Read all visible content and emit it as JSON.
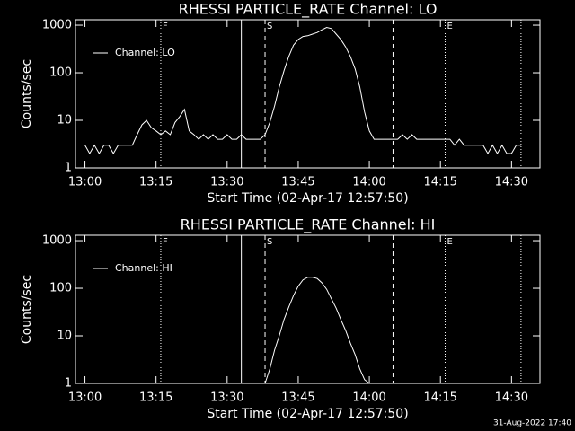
{
  "chart_data": [
    {
      "type": "line",
      "title": "RHESSI PARTICLE_RATE Channel: LO",
      "xlabel": "Start Time (02-Apr-17 12:57:50)",
      "ylabel": "Counts/sec",
      "log_y": true,
      "xlim": [
        "12:58",
        "14:36"
      ],
      "ylim": [
        1,
        1300
      ],
      "yticks": [
        1,
        10,
        100,
        1000
      ],
      "xticks": [
        "13:00",
        "13:15",
        "13:30",
        "13:45",
        "14:00",
        "14:15",
        "14:30"
      ],
      "markers": [
        {
          "x": "13:16",
          "style": "dotted",
          "label": "F"
        },
        {
          "x": "13:33",
          "style": "solid"
        },
        {
          "x": "13:38",
          "style": "dashed",
          "label": "S"
        },
        {
          "x": "14:05",
          "style": "dashed"
        },
        {
          "x": "14:16",
          "style": "dotted",
          "label": "E"
        },
        {
          "x": "14:32",
          "style": "dotted"
        }
      ],
      "legend": "upper left",
      "x": [
        "13:00",
        "13:01",
        "13:02",
        "13:03",
        "13:04",
        "13:05",
        "13:06",
        "13:07",
        "13:08",
        "13:09",
        "13:10",
        "13:11",
        "13:12",
        "13:13",
        "13:14",
        "13:15",
        "13:16",
        "13:17",
        "13:18",
        "13:19",
        "13:20",
        "13:21",
        "13:22",
        "13:23",
        "13:24",
        "13:25",
        "13:26",
        "13:27",
        "13:28",
        "13:29",
        "13:30",
        "13:31",
        "13:32",
        "13:33",
        "13:34",
        "13:35",
        "13:36",
        "13:37",
        "13:38",
        "13:39",
        "13:40",
        "13:41",
        "13:42",
        "13:43",
        "13:44",
        "13:45",
        "13:46",
        "13:47",
        "13:48",
        "13:49",
        "13:50",
        "13:51",
        "13:52",
        "13:53",
        "13:54",
        "13:55",
        "13:56",
        "13:57",
        "13:58",
        "13:59",
        "14:00",
        "14:01",
        "14:02",
        "14:03",
        "14:04",
        "14:05",
        "14:06",
        "14:07",
        "14:08",
        "14:09",
        "14:10",
        "14:11",
        "14:12",
        "14:13",
        "14:14",
        "14:15",
        "14:16",
        "14:17",
        "14:18",
        "14:19",
        "14:20",
        "14:21",
        "14:22",
        "14:23",
        "14:24",
        "14:25",
        "14:26",
        "14:27",
        "14:28",
        "14:29",
        "14:30",
        "14:31",
        "14:32"
      ],
      "series": [
        {
          "name": "Channel: LO",
          "color": "#ffffff",
          "values": [
            3,
            2,
            3,
            2,
            3,
            3,
            2,
            3,
            3,
            3,
            3,
            5,
            8,
            10,
            7,
            6,
            5,
            6,
            5,
            9,
            12,
            17,
            6,
            5,
            4,
            5,
            4,
            5,
            4,
            4,
            5,
            4,
            4,
            5,
            4,
            4,
            4,
            4,
            5,
            9,
            20,
            50,
            110,
            220,
            380,
            500,
            580,
            600,
            650,
            700,
            800,
            900,
            850,
            650,
            500,
            350,
            220,
            120,
            50,
            15,
            6,
            4,
            4,
            4,
            4,
            4,
            4,
            5,
            4,
            5,
            4,
            4,
            4,
            4,
            4,
            4,
            4,
            4,
            3,
            4,
            3,
            3,
            3,
            3,
            3,
            2,
            3,
            2,
            3,
            2,
            2,
            3,
            3
          ]
        }
      ]
    },
    {
      "type": "line",
      "title": "RHESSI PARTICLE_RATE Channel: HI",
      "xlabel": "Start Time (02-Apr-17 12:57:50)",
      "ylabel": "Counts/sec",
      "log_y": true,
      "xlim": [
        "12:58",
        "14:36"
      ],
      "ylim": [
        1,
        1300
      ],
      "yticks": [
        1,
        10,
        100,
        1000
      ],
      "xticks": [
        "13:00",
        "13:15",
        "13:30",
        "13:45",
        "14:00",
        "14:15",
        "14:30"
      ],
      "markers": [
        {
          "x": "13:16",
          "style": "dotted",
          "label": "F"
        },
        {
          "x": "13:33",
          "style": "solid"
        },
        {
          "x": "13:38",
          "style": "dashed",
          "label": "S"
        },
        {
          "x": "14:05",
          "style": "dashed"
        },
        {
          "x": "14:16",
          "style": "dotted",
          "label": "E"
        },
        {
          "x": "14:32",
          "style": "dotted"
        }
      ],
      "legend": "upper left",
      "x": [
        "13:38",
        "13:39",
        "13:40",
        "13:41",
        "13:42",
        "13:43",
        "13:44",
        "13:45",
        "13:46",
        "13:47",
        "13:48",
        "13:49",
        "13:50",
        "13:51",
        "13:52",
        "13:53",
        "13:54",
        "13:55",
        "13:56",
        "13:57",
        "13:58",
        "13:59",
        "14:00"
      ],
      "series": [
        {
          "name": "Channel: HI",
          "color": "#ffffff",
          "values": [
            1,
            2,
            5,
            10,
            22,
            40,
            70,
            110,
            150,
            170,
            170,
            160,
            130,
            95,
            60,
            38,
            22,
            13,
            7,
            4,
            2,
            1.2,
            1
          ]
        }
      ]
    }
  ],
  "timestamp": "31-Aug-2022 17:40"
}
